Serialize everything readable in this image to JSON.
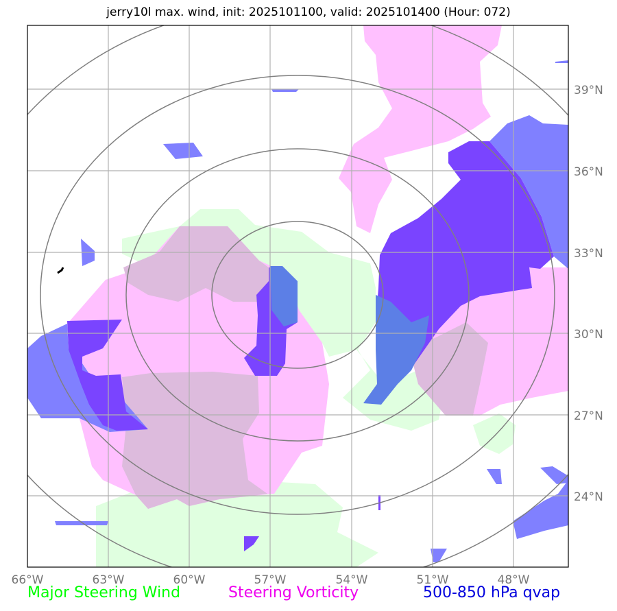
{
  "title": "jerry10l max. wind, init: 2025101100, valid: 2025101400 (Hour: 072)",
  "map": {
    "lon_labels": [
      "66°W",
      "63°W",
      "60°W",
      "57°W",
      "54°W",
      "51°W",
      "48°W"
    ],
    "lat_labels": [
      "39°N",
      "36°N",
      "33°N",
      "30°N",
      "27°N",
      "24°N"
    ],
    "lon_range_deg_w": [
      66,
      46
    ],
    "lat_range_deg_n": [
      21,
      41
    ],
    "gridlines": true,
    "range_rings": 4
  },
  "legend": [
    {
      "label": "Major Steering Wind",
      "color": "#00ff00"
    },
    {
      "label": "Steering Vorticity",
      "color": "#ee00ee"
    },
    {
      "label": "500-850 hPa qvap",
      "color": "#0000dd"
    }
  ],
  "colors": {
    "wind_fill": "#e0ffe0",
    "vorticity_fill": "#ffc0ff",
    "qvap_fill": "#8080ff",
    "qvap_dark": "#7a44ff",
    "overlap_fill": "#ddbbdd",
    "ring": "#808080",
    "grid": "#b0b0b0"
  }
}
